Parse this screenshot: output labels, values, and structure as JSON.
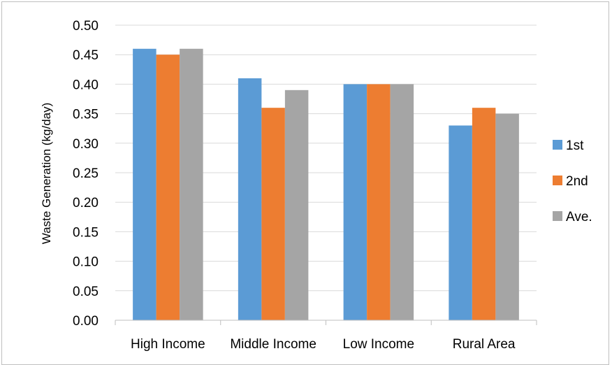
{
  "chart_data": {
    "type": "bar",
    "categories": [
      "High Income",
      "Middle Income",
      "Low Income",
      "Rural Area"
    ],
    "series": [
      {
        "name": "1st",
        "color": "#5b9bd5",
        "values": [
          0.46,
          0.41,
          0.4,
          0.33
        ]
      },
      {
        "name": "2nd",
        "color": "#ed7d31",
        "values": [
          0.45,
          0.36,
          0.4,
          0.36
        ]
      },
      {
        "name": "Ave.",
        "color": "#a5a5a5",
        "values": [
          0.46,
          0.39,
          0.4,
          0.35
        ]
      }
    ],
    "title": "",
    "xlabel": "",
    "ylabel": "Waste Generation (kg/day)",
    "ylim": [
      0,
      0.5
    ],
    "yticks": [
      "0.00",
      "0.05",
      "0.10",
      "0.15",
      "0.20",
      "0.25",
      "0.30",
      "0.35",
      "0.40",
      "0.45",
      "0.50"
    ],
    "grid": true,
    "legend_position": "right"
  }
}
